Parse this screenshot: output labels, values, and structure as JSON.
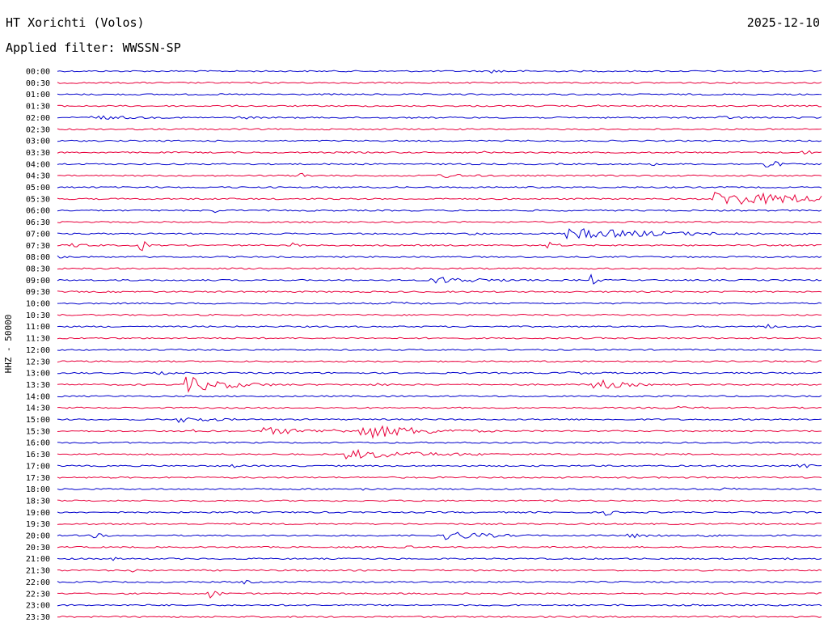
{
  "header": {
    "station": "HT Xorichti (Volos)",
    "date": "2025-12-10",
    "filter": "Applied filter: WWSSN-SP"
  },
  "chart_data": {
    "type": "line",
    "ylabel": "HHZ - 50000",
    "colors": [
      "#0000cc",
      "#e8003c"
    ],
    "rows": [
      {
        "label": "00:00",
        "events": [
          [
            0.57,
            0.12,
            2.5
          ],
          [
            0.64,
            0.05,
            1.5
          ]
        ]
      },
      {
        "label": "00:30",
        "events": []
      },
      {
        "label": "01:00",
        "events": []
      },
      {
        "label": "01:30",
        "events": [
          [
            0.71,
            0.03,
            1.5
          ]
        ]
      },
      {
        "label": "02:00",
        "events": [
          [
            0.04,
            0.2,
            3
          ],
          [
            0.24,
            0.1,
            2
          ],
          [
            0.87,
            0.15,
            2
          ]
        ]
      },
      {
        "label": "02:30",
        "events": []
      },
      {
        "label": "03:00",
        "events": []
      },
      {
        "label": "03:30",
        "events": [
          [
            0.56,
            0.02,
            2
          ],
          [
            0.97,
            0.2,
            2.5
          ]
        ]
      },
      {
        "label": "04:00",
        "events": [
          [
            0.78,
            0.02,
            2
          ],
          [
            0.93,
            0.04,
            6
          ]
        ]
      },
      {
        "label": "04:30",
        "events": [
          [
            0.32,
            0.03,
            4
          ],
          [
            0.5,
            0.15,
            3
          ]
        ]
      },
      {
        "label": "05:00",
        "events": [
          [
            0.22,
            0.1,
            1.5
          ]
        ]
      },
      {
        "label": "05:30",
        "events": [
          [
            0.86,
            0.5,
            9
          ]
        ]
      },
      {
        "label": "06:00",
        "events": [
          [
            0.21,
            0.02,
            3
          ]
        ]
      },
      {
        "label": "06:30",
        "events": []
      },
      {
        "label": "07:00",
        "events": [
          [
            0.67,
            0.35,
            7
          ],
          [
            0.54,
            0.08,
            2
          ]
        ]
      },
      {
        "label": "07:30",
        "events": [
          [
            0.02,
            0.1,
            3
          ],
          [
            0.11,
            0.02,
            8
          ],
          [
            0.31,
            0.02,
            4
          ],
          [
            0.64,
            0.05,
            5
          ]
        ]
      },
      {
        "label": "08:00",
        "events": [
          [
            0.0,
            0.05,
            3
          ]
        ]
      },
      {
        "label": "08:30",
        "events": []
      },
      {
        "label": "09:00",
        "events": [
          [
            0.49,
            0.2,
            5
          ],
          [
            0.7,
            0.02,
            7
          ]
        ]
      },
      {
        "label": "09:30",
        "events": []
      },
      {
        "label": "10:00",
        "events": [
          [
            0.44,
            0.2,
            2
          ]
        ]
      },
      {
        "label": "10:30",
        "events": []
      },
      {
        "label": "11:00",
        "events": [
          [
            0.93,
            0.05,
            3
          ]
        ]
      },
      {
        "label": "11:30",
        "events": []
      },
      {
        "label": "12:00",
        "events": []
      },
      {
        "label": "12:30",
        "events": []
      },
      {
        "label": "13:00",
        "events": [
          [
            0.13,
            0.15,
            2
          ],
          [
            0.67,
            0.2,
            2
          ]
        ]
      },
      {
        "label": "13:30",
        "events": [
          [
            0.17,
            0.15,
            10
          ],
          [
            0.7,
            0.1,
            8
          ],
          [
            0.42,
            0.1,
            2
          ]
        ]
      },
      {
        "label": "14:00",
        "events": []
      },
      {
        "label": "14:30",
        "events": [
          [
            0.8,
            0.2,
            2
          ]
        ]
      },
      {
        "label": "15:00",
        "events": [
          [
            0.16,
            0.15,
            4
          ],
          [
            0.65,
            0.15,
            1.5
          ]
        ]
      },
      {
        "label": "15:30",
        "events": [
          [
            0.27,
            0.18,
            5
          ],
          [
            0.35,
            0.15,
            3
          ],
          [
            0.4,
            0.2,
            10
          ],
          [
            0.18,
            0.08,
            2
          ]
        ]
      },
      {
        "label": "16:00",
        "events": []
      },
      {
        "label": "16:30",
        "events": [
          [
            0.38,
            0.3,
            6
          ]
        ]
      },
      {
        "label": "17:00",
        "events": [
          [
            0.23,
            0.05,
            2.5
          ],
          [
            0.97,
            0.15,
            3
          ]
        ]
      },
      {
        "label": "17:30",
        "events": []
      },
      {
        "label": "18:00",
        "events": [
          [
            0.4,
            0.03,
            3
          ],
          [
            0.87,
            0.1,
            2
          ]
        ]
      },
      {
        "label": "18:30",
        "events": [
          [
            0.48,
            0.05,
            1.5
          ]
        ]
      },
      {
        "label": "19:00",
        "events": [
          [
            0.72,
            0.03,
            4
          ]
        ]
      },
      {
        "label": "19:30",
        "events": []
      },
      {
        "label": "20:00",
        "events": [
          [
            0.05,
            0.05,
            3
          ],
          [
            0.51,
            0.15,
            6
          ],
          [
            0.75,
            0.1,
            3
          ],
          [
            0.85,
            0.1,
            2
          ]
        ]
      },
      {
        "label": "20:30",
        "events": [
          [
            0.46,
            0.02,
            3
          ]
        ]
      },
      {
        "label": "21:00",
        "events": [
          [
            0.07,
            0.05,
            2.5
          ],
          [
            0.95,
            0.05,
            2
          ]
        ]
      },
      {
        "label": "21:30",
        "events": [
          [
            0.1,
            0.02,
            3
          ],
          [
            0.32,
            0.1,
            2
          ]
        ]
      },
      {
        "label": "22:00",
        "events": [
          [
            0.24,
            0.05,
            3
          ]
        ]
      },
      {
        "label": "22:30",
        "events": [
          [
            0.2,
            0.03,
            7
          ],
          [
            0.58,
            0.1,
            1.5
          ],
          [
            1.0,
            0.03,
            3
          ]
        ]
      },
      {
        "label": "23:00",
        "events": [
          [
            0.82,
            0.05,
            3
          ],
          [
            0.7,
            0.02,
            2
          ]
        ]
      },
      {
        "label": "23:30",
        "events": []
      }
    ]
  }
}
